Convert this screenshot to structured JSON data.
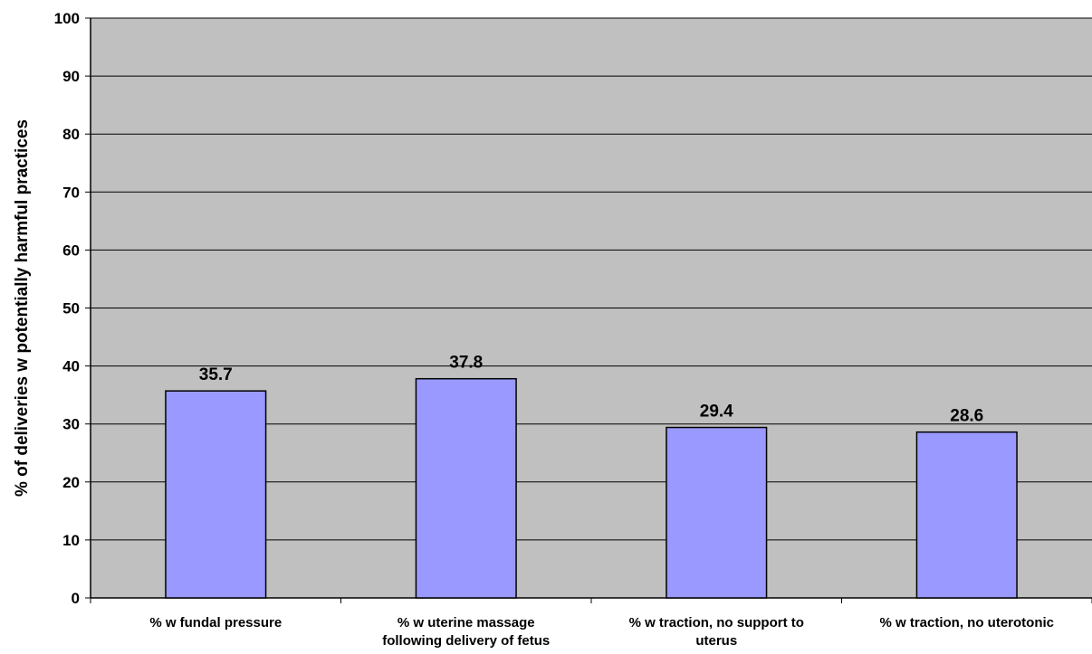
{
  "chart_data": {
    "type": "bar",
    "title": "",
    "xlabel": "",
    "ylabel": "% of deliveries w potentially harmful practices",
    "ylim": [
      0,
      100
    ],
    "yticks": [
      0,
      10,
      20,
      30,
      40,
      50,
      60,
      70,
      80,
      90,
      100
    ],
    "grid": true,
    "categories": [
      [
        "% w fundal pressure"
      ],
      [
        "% w uterine massage",
        "following delivery of fetus"
      ],
      [
        "% w traction, no support to",
        "uterus"
      ],
      [
        "% w traction, no uterotonic"
      ]
    ],
    "values": [
      35.7,
      37.8,
      29.4,
      28.6
    ],
    "data_labels": [
      "35.7",
      "37.8",
      "29.4",
      "28.6"
    ],
    "colors": {
      "plot_background": "#c0c0c0",
      "bar_fill": "#9999ff",
      "bar_stroke": "#000000",
      "grid": "#000000"
    }
  }
}
